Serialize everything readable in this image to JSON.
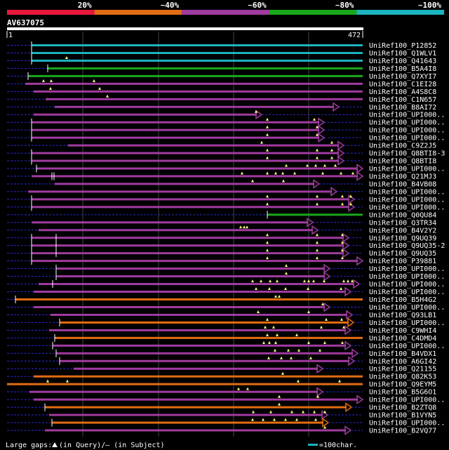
{
  "legend": {
    "segments": [
      {
        "label": "20%",
        "color": "#e8183c"
      },
      {
        "label": "~40%",
        "color": "#e36c12"
      },
      {
        "label": "~60%",
        "color": "#a03ba0"
      },
      {
        "label": "~80%",
        "color": "#19a81c"
      },
      {
        "label": "~100%",
        "color": "#1bb4c0"
      }
    ]
  },
  "query": {
    "name": "AV637075",
    "start": "1",
    "end": "472"
  },
  "footer": {
    "gaps_prefix": "Large gaps:",
    "gaps_suffix": "(in Query)/– (in Subject)",
    "scale_label": "=100char."
  },
  "hits": [
    {
      "name": "UniRef100_P12852",
      "bar": "cyan",
      "start": 45,
      "end": 517,
      "arrow": false,
      "dashStart": 10,
      "sep": [
        45
      ],
      "tri": []
    },
    {
      "name": "UniRef100_Q1WLV1",
      "bar": "cyan",
      "start": 45,
      "end": 517,
      "arrow": false,
      "dashStart": 10,
      "sep": [
        45
      ],
      "tri": []
    },
    {
      "name": "UniRef100_Q41643",
      "bar": "cyan",
      "start": 45,
      "end": 517,
      "arrow": false,
      "dashStart": 10,
      "sep": [
        45
      ],
      "tri": [
        95
      ]
    },
    {
      "name": "UniRef100_B5A4I8",
      "bar": "green",
      "start": 68,
      "end": 517,
      "arrow": false,
      "dashStart": 10,
      "sep": [
        68
      ],
      "tri": []
    },
    {
      "name": "UniRef100_Q7XYI7",
      "bar": "green",
      "start": 40,
      "end": 517,
      "arrow": false,
      "dashStart": 10,
      "sep": [
        40
      ],
      "tri": []
    },
    {
      "name": "UniRef100_C1EI28",
      "bar": "purple",
      "start": 36,
      "end": 517,
      "arrow": false,
      "dashStart": 10,
      "sep": [],
      "tri": [
        62,
        73,
        134
      ]
    },
    {
      "name": "UniRef100_A4S8C8",
      "bar": "purple",
      "start": 48,
      "end": 517,
      "arrow": false,
      "dashStart": 10,
      "sep": [],
      "tri": [
        72,
        142
      ]
    },
    {
      "name": "UniRef100_C1N657",
      "bar": "purple",
      "start": 65,
      "end": 517,
      "arrow": false,
      "dashStart": 10,
      "sep": [],
      "tri": [
        153
      ]
    },
    {
      "name": "UniRef100_B8AI72",
      "bar": "purple",
      "start": 78,
      "end": 483,
      "arrow": true,
      "dashStart": 10,
      "sep": [],
      "tri": []
    },
    {
      "name": "UniRef100_UPI000..",
      "bar": "purple",
      "start": 48,
      "end": 373,
      "arrow": true,
      "dashStart": 10,
      "sep": [],
      "tri": [
        365
      ]
    },
    {
      "name": "UniRef100_UPI000..",
      "bar": "purple",
      "start": 45,
      "end": 462,
      "arrow": true,
      "dashStart": 10,
      "sep": [
        45
      ],
      "tri": [
        381,
        448
      ]
    },
    {
      "name": "UniRef100_UPI000..",
      "bar": "purple",
      "start": 45,
      "end": 462,
      "arrow": true,
      "dashStart": 10,
      "sep": [
        45
      ],
      "tri": [
        381,
        452
      ]
    },
    {
      "name": "UniRef100_UPI000..",
      "bar": "purple",
      "start": 45,
      "end": 462,
      "arrow": true,
      "dashStart": 10,
      "sep": [
        45
      ],
      "tri": [
        381,
        452
      ]
    },
    {
      "name": "UniRef100_C9Z2J5",
      "bar": "purple",
      "start": 97,
      "end": 490,
      "arrow": true,
      "dashStart": 10,
      "sep": [],
      "tri": [
        373,
        473
      ]
    },
    {
      "name": "UniRef100_Q8BTI8-3",
      "bar": "purple",
      "start": 45,
      "end": 490,
      "arrow": true,
      "dashStart": 10,
      "sep": [
        45
      ],
      "tri": [
        381,
        452,
        473
      ]
    },
    {
      "name": "UniRef100_Q8BTI8",
      "bar": "purple",
      "start": 45,
      "end": 490,
      "arrow": true,
      "dashStart": 10,
      "sep": [
        45
      ],
      "tri": [
        381,
        452,
        473
      ]
    },
    {
      "name": "UniRef100_UPI000..",
      "bar": "purple",
      "start": 52,
      "end": 517,
      "arrow": true,
      "dashStart": 10,
      "sep": [
        52
      ],
      "tri": [
        408,
        438,
        450,
        463,
        478
      ]
    },
    {
      "name": "UniRef100_Q21MJ3",
      "bar": "purple",
      "start": 45,
      "end": 517,
      "arrow": true,
      "dashStart": 10,
      "sep": [
        74,
        77
      ],
      "tri": [
        345,
        381,
        393,
        403,
        420,
        460,
        486,
        503
      ]
    },
    {
      "name": "UniRef100_B4VB08",
      "bar": "purple",
      "start": 78,
      "end": 455,
      "arrow": true,
      "dashStart": 10,
      "sep": [],
      "tri": [
        360,
        404
      ]
    },
    {
      "name": "UniRef100_UPI000..",
      "bar": "purple",
      "start": 40,
      "end": 480,
      "arrow": true,
      "dashStart": 10,
      "sep": [],
      "tri": []
    },
    {
      "name": "UniRef100_UPI000..",
      "bar": "purple",
      "start": 45,
      "end": 505,
      "arrow": true,
      "dashStart": 10,
      "sep": [
        45
      ],
      "tri": [
        381,
        452,
        488,
        500
      ]
    },
    {
      "name": "UniRef100_UPI000..",
      "bar": "purple",
      "start": 45,
      "end": 505,
      "arrow": true,
      "dashStart": 10,
      "sep": [
        45
      ],
      "tri": [
        381,
        452,
        488,
        500
      ]
    },
    {
      "name": "UniRef100_Q0QU84",
      "bar": "green",
      "start": 381,
      "end": 517,
      "arrow": false,
      "dashStart": 10,
      "sep": [
        381
      ],
      "tri": []
    },
    {
      "name": "UniRef100_Q3TR34",
      "bar": "purple",
      "start": 45,
      "end": 446,
      "arrow": true,
      "dashStart": 10,
      "sep": [],
      "tri": []
    },
    {
      "name": "UniRef100_B4V2Y2",
      "bar": "purple",
      "start": 55,
      "end": 453,
      "arrow": true,
      "dashStart": 10,
      "sep": [],
      "tri": [
        343,
        352,
        348
      ]
    },
    {
      "name": "UniRef100_Q9UQ39",
      "bar": "purple",
      "start": 45,
      "end": 497,
      "arrow": true,
      "dashStart": 10,
      "sep": [
        45,
        80
      ],
      "tri": [
        381,
        452,
        488
      ]
    },
    {
      "name": "UniRef100_Q9UQ35-2",
      "bar": "purple",
      "start": 45,
      "end": 497,
      "arrow": true,
      "dashStart": 10,
      "sep": [
        45,
        80
      ],
      "tri": [
        381,
        452,
        488
      ]
    },
    {
      "name": "UniRef100_Q9UQ35",
      "bar": "purple",
      "start": 45,
      "end": 497,
      "arrow": true,
      "dashStart": 10,
      "sep": [
        45,
        80
      ],
      "tri": [
        381,
        452,
        488
      ]
    },
    {
      "name": "UniRef100_P39881",
      "bar": "purple",
      "start": 45,
      "end": 517,
      "arrow": true,
      "dashStart": 10,
      "sep": [
        45
      ],
      "tri": [
        381,
        452,
        488
      ]
    },
    {
      "name": "UniRef100_UPI000..",
      "bar": "purple",
      "start": 80,
      "end": 470,
      "arrow": true,
      "dashStart": 10,
      "sep": [
        80
      ],
      "tri": [
        408
      ]
    },
    {
      "name": "UniRef100_UPI000..",
      "bar": "purple",
      "start": 80,
      "end": 470,
      "arrow": true,
      "dashStart": 10,
      "sep": [
        80
      ],
      "tri": [
        408
      ]
    },
    {
      "name": "UniRef100_UPI000..",
      "bar": "purple",
      "start": 55,
      "end": 512,
      "arrow": true,
      "dashStart": 10,
      "sep": [
        75
      ],
      "tri": [
        360,
        372,
        385,
        395,
        434,
        440,
        447,
        462,
        490,
        496,
        502
      ]
    },
    {
      "name": "UniRef100_UPI000..",
      "bar": "purple",
      "start": 48,
      "end": 500,
      "arrow": true,
      "dashStart": 10,
      "sep": [],
      "tri": [
        365,
        384,
        407,
        439,
        486
      ]
    },
    {
      "name": "UniRef100_B5H4G2",
      "bar": "orange",
      "start": 22,
      "end": 517,
      "arrow": false,
      "dashStart": 10,
      "sep": [
        22
      ],
      "tri": [
        393,
        398
      ]
    },
    {
      "name": "UniRef100_UPI000..",
      "bar": "purple",
      "start": 48,
      "end": 470,
      "arrow": true,
      "dashStart": 10,
      "sep": [],
      "tri": [
        460
      ]
    },
    {
      "name": "UniRef100_Q93LB1",
      "bar": "purple",
      "start": 72,
      "end": 502,
      "arrow": true,
      "dashStart": 10,
      "sep": [],
      "tri": [
        368,
        440
      ]
    },
    {
      "name": "UniRef100_UPI000..",
      "bar": "orange",
      "start": 85,
      "end": 504,
      "arrow": true,
      "dashStart": 10,
      "sep": [
        85
      ],
      "tri": [
        381,
        465,
        487
      ]
    },
    {
      "name": "UniRef100_C9WHI4",
      "bar": "purple",
      "start": 70,
      "end": 500,
      "arrow": true,
      "dashStart": 10,
      "sep": [],
      "tri": [
        378,
        390,
        458,
        490
      ]
    },
    {
      "name": "UniRef100_C4DMD4",
      "bar": "orange",
      "start": 78,
      "end": 517,
      "arrow": false,
      "dashStart": 10,
      "sep": [
        78
      ],
      "tri": [
        381,
        395,
        423
      ]
    },
    {
      "name": "UniRef100_UPI000..",
      "bar": "purple",
      "start": 75,
      "end": 500,
      "arrow": true,
      "dashStart": 10,
      "sep": [
        75
      ],
      "tri": [
        376,
        384,
        393,
        440,
        463,
        488
      ]
    },
    {
      "name": "UniRef100_B4VDX1",
      "bar": "purple",
      "start": 80,
      "end": 510,
      "arrow": true,
      "dashStart": 10,
      "sep": [
        80
      ],
      "tri": [
        392,
        411,
        426,
        456
      ]
    },
    {
      "name": "UniRef100_A6GI42",
      "bar": "purple",
      "start": 85,
      "end": 505,
      "arrow": true,
      "dashStart": 10,
      "sep": [
        85
      ],
      "tri": [
        383,
        401,
        415,
        443
      ]
    },
    {
      "name": "UniRef100_Q21155",
      "bar": "purple",
      "start": 105,
      "end": 460,
      "arrow": true,
      "dashStart": 10,
      "sep": [],
      "tri": []
    },
    {
      "name": "UniRef100_Q82K53",
      "bar": "orange",
      "start": 48,
      "end": 517,
      "arrow": false,
      "dashStart": 10,
      "sep": [],
      "tri": [
        403
      ]
    },
    {
      "name": "UniRef100_Q9EYM5",
      "bar": "orange",
      "start": 10,
      "end": 517,
      "arrow": false,
      "dashStart": 10,
      "sep": [],
      "tri": [
        68,
        96,
        425,
        484
      ]
    },
    {
      "name": "UniRef100_B5G6O1",
      "bar": "purple",
      "start": 42,
      "end": 460,
      "arrow": true,
      "dashStart": 10,
      "sep": [],
      "tri": [
        340,
        353
      ]
    },
    {
      "name": "UniRef100_UPI000..",
      "bar": "purple",
      "start": 48,
      "end": 517,
      "arrow": true,
      "dashStart": 10,
      "sep": [],
      "tri": [
        398,
        453
      ]
    },
    {
      "name": "UniRef100_B2ZTQ8",
      "bar": "orange",
      "start": 64,
      "end": 501,
      "arrow": true,
      "dashStart": 10,
      "sep": [
        64
      ],
      "tri": [
        398
      ]
    },
    {
      "name": "UniRef100_B1VYN5",
      "bar": "purple",
      "start": 70,
      "end": 467,
      "arrow": true,
      "dashStart": 10,
      "sep": [],
      "tri": [
        361,
        386,
        416,
        432,
        448,
        463
      ]
    },
    {
      "name": "UniRef100_UPI000..",
      "bar": "orange",
      "start": 74,
      "end": 468,
      "arrow": true,
      "dashStart": 10,
      "sep": [
        74
      ],
      "tri": [
        360,
        375,
        391,
        407,
        423,
        450
      ]
    },
    {
      "name": "UniRef100_B2VQ77",
      "bar": "purple",
      "start": 64,
      "end": 500,
      "arrow": true,
      "dashStart": 10,
      "sep": [],
      "tri": [
        463
      ]
    }
  ],
  "colors": {
    "cyan": "#1bb4c0",
    "green": "#19a81c",
    "purple": "#a03ba0",
    "orange": "#e36c12",
    "grid": "#444444",
    "dash": "#2a2ad0",
    "text": "#ffffff",
    "triangle": "#ffff80"
  }
}
